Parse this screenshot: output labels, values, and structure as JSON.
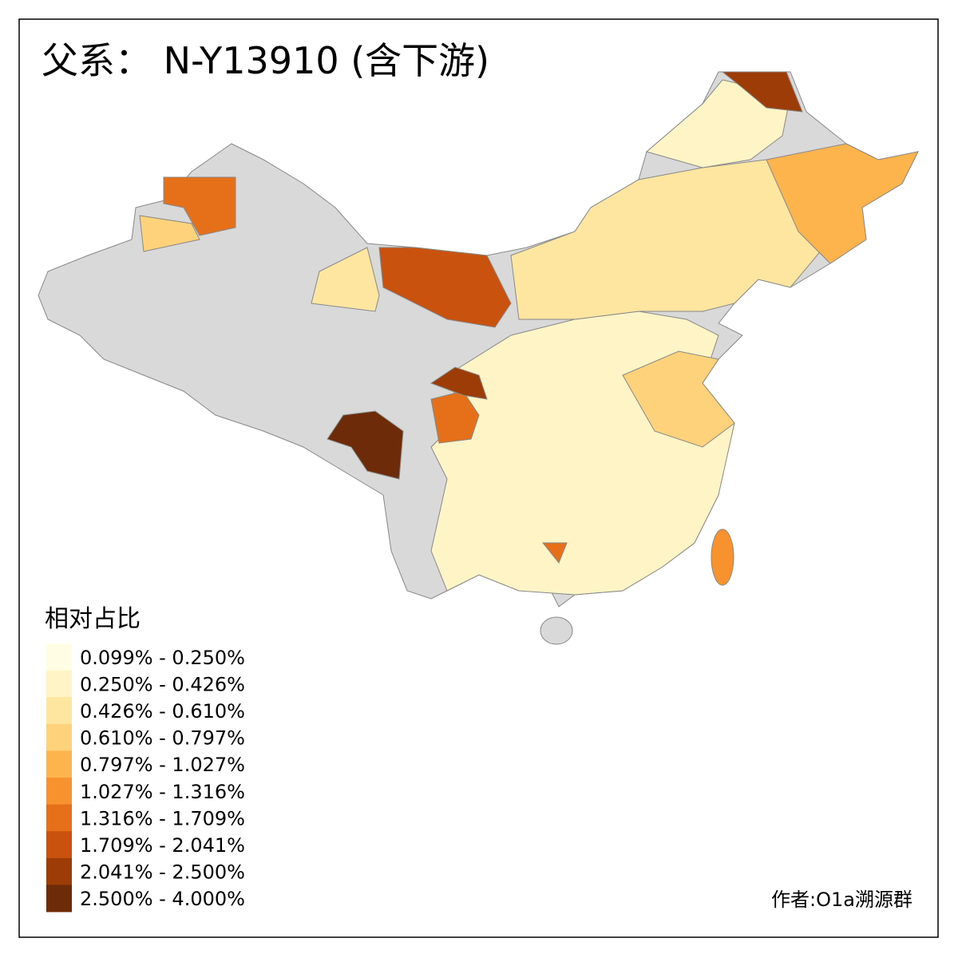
{
  "title": "父系： N-Y13910 (含下游)",
  "legend": {
    "title": "相对占比",
    "items": [
      {
        "label": "0.099% - 0.250%",
        "color": "#fffde3"
      },
      {
        "label": "0.250% - 0.426%",
        "color": "#fff4c6"
      },
      {
        "label": "0.426% - 0.610%",
        "color": "#fee5a0"
      },
      {
        "label": "0.610% - 0.797%",
        "color": "#fed27a"
      },
      {
        "label": "0.797% - 1.027%",
        "color": "#feb44c"
      },
      {
        "label": "1.027% - 1.316%",
        "color": "#f8922e"
      },
      {
        "label": "1.316% - 1.709%",
        "color": "#e6701a"
      },
      {
        "label": "1.709% - 2.041%",
        "color": "#c9520e"
      },
      {
        "label": "2.041% - 2.500%",
        "color": "#9e3c08"
      },
      {
        "label": "2.500% - 4.000%",
        "color": "#6e2b0a"
      }
    ]
  },
  "credit": "作者:O1a溯源群"
}
